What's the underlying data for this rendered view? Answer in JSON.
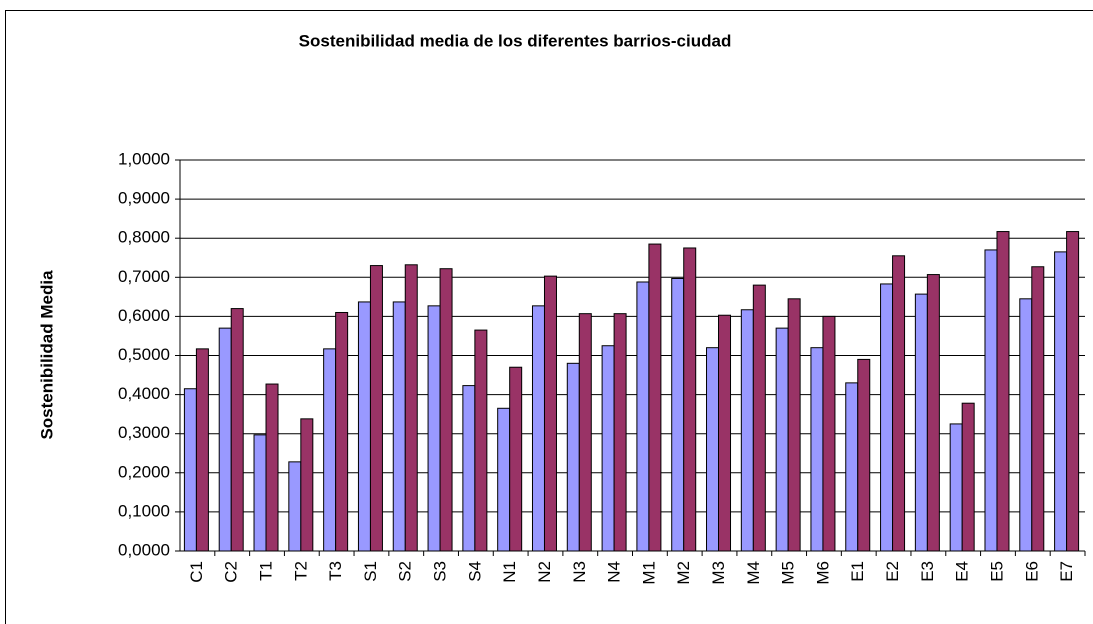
{
  "chart_data": {
    "type": "bar",
    "title": "Sostenibilidad media de los diferentes barrios-ciudad",
    "y_label": "Sostenibilidad Media",
    "categories": [
      "C1",
      "C2",
      "T1",
      "T2",
      "T3",
      "S1",
      "S2",
      "S3",
      "S4",
      "N1",
      "N2",
      "N3",
      "N4",
      "M1",
      "M2",
      "M3",
      "M4",
      "M5",
      "M6",
      "E1",
      "E2",
      "E3",
      "E4",
      "E5",
      "E6",
      "E7"
    ],
    "series": [
      {
        "color": "#9999ff",
        "values": [
          0.415,
          0.57,
          0.297,
          0.228,
          0.517,
          0.637,
          0.637,
          0.627,
          0.423,
          0.365,
          0.627,
          0.48,
          0.525,
          0.688,
          0.697,
          0.52,
          0.617,
          0.57,
          0.52,
          0.43,
          0.683,
          0.657,
          0.325,
          0.77,
          0.645,
          0.765
        ]
      },
      {
        "color": "#993366",
        "values": [
          0.517,
          0.62,
          0.427,
          0.338,
          0.61,
          0.73,
          0.732,
          0.722,
          0.565,
          0.47,
          0.703,
          0.607,
          0.607,
          0.785,
          0.775,
          0.603,
          0.68,
          0.645,
          0.6,
          0.49,
          0.755,
          0.707,
          0.378,
          0.817,
          0.727,
          0.817
        ]
      }
    ],
    "ylim": [
      0,
      1
    ],
    "yticks": [
      {
        "value": 0,
        "label": "0,0000"
      },
      {
        "value": 0.1,
        "label": "0,1000"
      },
      {
        "value": 0.2,
        "label": "0,2000"
      },
      {
        "value": 0.3,
        "label": "0,3000"
      },
      {
        "value": 0.4,
        "label": "0,4000"
      },
      {
        "value": 0.5,
        "label": "0,5000"
      },
      {
        "value": 0.6,
        "label": "0,6000"
      },
      {
        "value": 0.7,
        "label": "0,7000"
      },
      {
        "value": 0.8,
        "label": "0,8000"
      },
      {
        "value": 0.9,
        "label": "0,9000"
      },
      {
        "value": 1,
        "label": "1,0000"
      }
    ],
    "grid": true
  }
}
